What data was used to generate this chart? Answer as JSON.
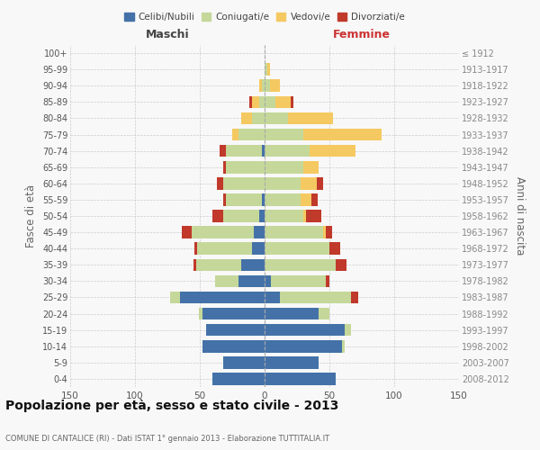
{
  "age_groups": [
    "0-4",
    "5-9",
    "10-14",
    "15-19",
    "20-24",
    "25-29",
    "30-34",
    "35-39",
    "40-44",
    "45-49",
    "50-54",
    "55-59",
    "60-64",
    "65-69",
    "70-74",
    "75-79",
    "80-84",
    "85-89",
    "90-94",
    "95-99",
    "100+"
  ],
  "birth_years": [
    "2008-2012",
    "2003-2007",
    "1998-2002",
    "1993-1997",
    "1988-1992",
    "1983-1987",
    "1978-1982",
    "1973-1977",
    "1968-1972",
    "1963-1967",
    "1958-1962",
    "1953-1957",
    "1948-1952",
    "1943-1947",
    "1938-1942",
    "1933-1937",
    "1928-1932",
    "1923-1927",
    "1918-1922",
    "1913-1917",
    "≤ 1912"
  ],
  "maschi": {
    "celibi": [
      40,
      32,
      48,
      45,
      48,
      65,
      20,
      18,
      10,
      8,
      4,
      2,
      0,
      0,
      2,
      0,
      0,
      0,
      0,
      0,
      0
    ],
    "coniugati": [
      0,
      0,
      0,
      0,
      3,
      8,
      18,
      35,
      42,
      48,
      28,
      28,
      32,
      30,
      28,
      20,
      10,
      4,
      2,
      0,
      0
    ],
    "vedovi": [
      0,
      0,
      0,
      0,
      0,
      0,
      0,
      0,
      0,
      0,
      0,
      0,
      0,
      0,
      0,
      5,
      8,
      6,
      2,
      0,
      0
    ],
    "divorziati": [
      0,
      0,
      0,
      0,
      0,
      0,
      0,
      2,
      2,
      8,
      8,
      2,
      5,
      2,
      5,
      0,
      0,
      2,
      0,
      0,
      0
    ]
  },
  "femmine": {
    "nubili": [
      55,
      42,
      60,
      62,
      42,
      12,
      5,
      0,
      0,
      0,
      0,
      0,
      0,
      0,
      0,
      0,
      0,
      0,
      0,
      0,
      0
    ],
    "coniugate": [
      0,
      0,
      2,
      5,
      8,
      55,
      42,
      55,
      50,
      45,
      30,
      28,
      28,
      30,
      35,
      30,
      18,
      8,
      4,
      2,
      0
    ],
    "vedove": [
      0,
      0,
      0,
      0,
      0,
      0,
      0,
      0,
      0,
      2,
      2,
      8,
      12,
      12,
      35,
      60,
      35,
      12,
      8,
      2,
      0
    ],
    "divorziate": [
      0,
      0,
      0,
      0,
      0,
      5,
      3,
      8,
      8,
      5,
      12,
      5,
      5,
      0,
      0,
      0,
      0,
      2,
      0,
      0,
      0
    ]
  },
  "colors": {
    "celibi_nubili": "#4472A8",
    "coniugati": "#C5D89A",
    "vedovi": "#F5C961",
    "divorziati": "#C0392B"
  },
  "xlim": 150,
  "title": "Popolazione per età, sesso e stato civile - 2013",
  "subtitle": "COMUNE DI CANTALICE (RI) - Dati ISTAT 1° gennaio 2013 - Elaborazione TUTTITALIA.IT",
  "ylabel_left": "Fasce di età",
  "ylabel_right": "Anni di nascita",
  "xlabel_maschi": "Maschi",
  "xlabel_femmine": "Femmine",
  "bg_color": "#f8f8f8",
  "grid_color": "#cccccc"
}
